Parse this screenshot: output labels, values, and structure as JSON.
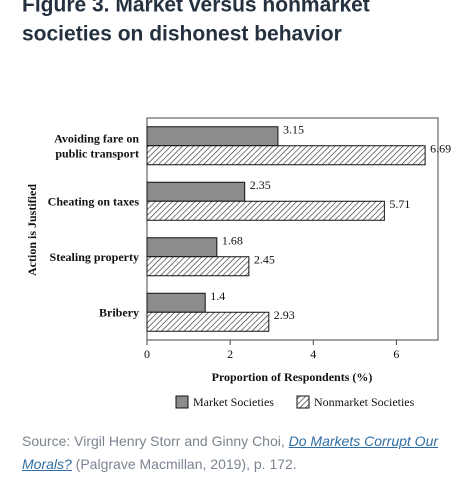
{
  "chart_data": {
    "type": "hbar",
    "title": "Figure 3. Market versus nonmarket societies on dishonest behavior",
    "categories": [
      "Avoiding fare on public transport",
      "Cheating on taxes",
      "Stealing property",
      "Bribery"
    ],
    "series": [
      {
        "name": "Market Societies",
        "color": "#8c8c8c",
        "pattern": "solid",
        "values": [
          3.15,
          2.35,
          1.68,
          1.4
        ]
      },
      {
        "name": "Nonmarket Societies",
        "color": "#ffffff",
        "pattern": "hatch",
        "values": [
          6.69,
          5.71,
          2.45,
          2.93
        ]
      }
    ],
    "xlabel": "Proportion of Respondents (%)",
    "ylabel": "Action is Justified",
    "xlim": [
      0,
      7
    ],
    "xticks": [
      0,
      2,
      4,
      6
    ],
    "grid": false,
    "legend": "bottom"
  },
  "source": {
    "prefix": "Source: Virgil Henry Storr and Ginny Choi, ",
    "link": "Do Markets Corrupt Our Morals?",
    "suffix": " (Palgrave Macmillan, 2019), p. 172."
  }
}
